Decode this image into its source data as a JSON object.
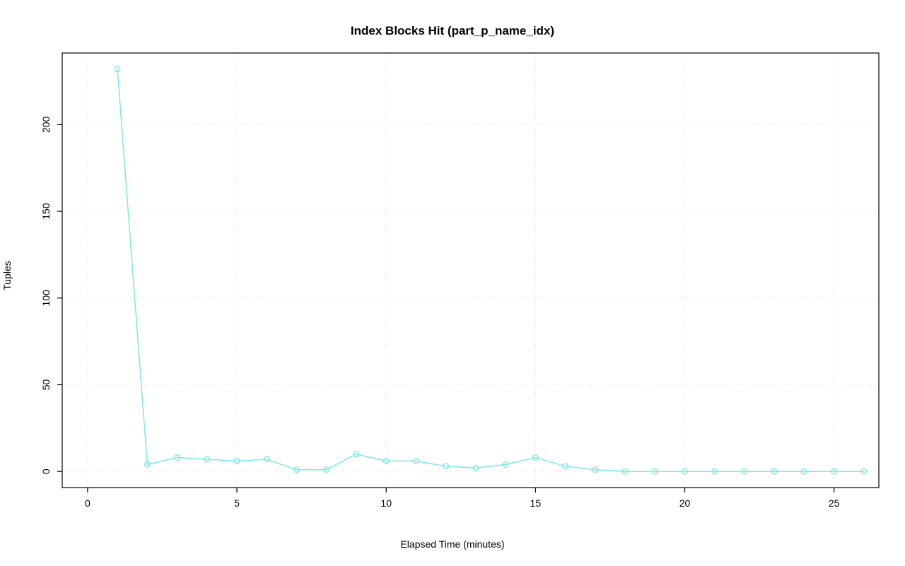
{
  "chart_data": {
    "type": "line",
    "title": "Index Blocks Hit (part_p_name_idx)",
    "xlabel": "Elapsed Time (minutes)",
    "ylabel": "Tuples",
    "x": [
      1,
      2,
      3,
      4,
      5,
      6,
      7,
      8,
      9,
      10,
      11,
      12,
      13,
      14,
      15,
      16,
      17,
      18,
      19,
      20,
      21,
      22,
      23,
      24,
      25,
      26
    ],
    "values": [
      232,
      4,
      8,
      7,
      6,
      7,
      1,
      1,
      10,
      6,
      6,
      3,
      2,
      4,
      8,
      3,
      1,
      0,
      0,
      0,
      0,
      0,
      0,
      0,
      0,
      0
    ],
    "xticks": [
      0,
      5,
      10,
      15,
      20,
      25
    ],
    "yticks": [
      0,
      50,
      100,
      150,
      200
    ],
    "xlim": [
      -0.85,
      26.5
    ],
    "ylim": [
      -9.3,
      241.3
    ],
    "grid": true,
    "legend": "none",
    "colors": {
      "series": "#7ae8e8",
      "grid": "#d9d9d9",
      "axis": "#000000",
      "background": "#ffffff"
    },
    "marker": "open-circle"
  }
}
